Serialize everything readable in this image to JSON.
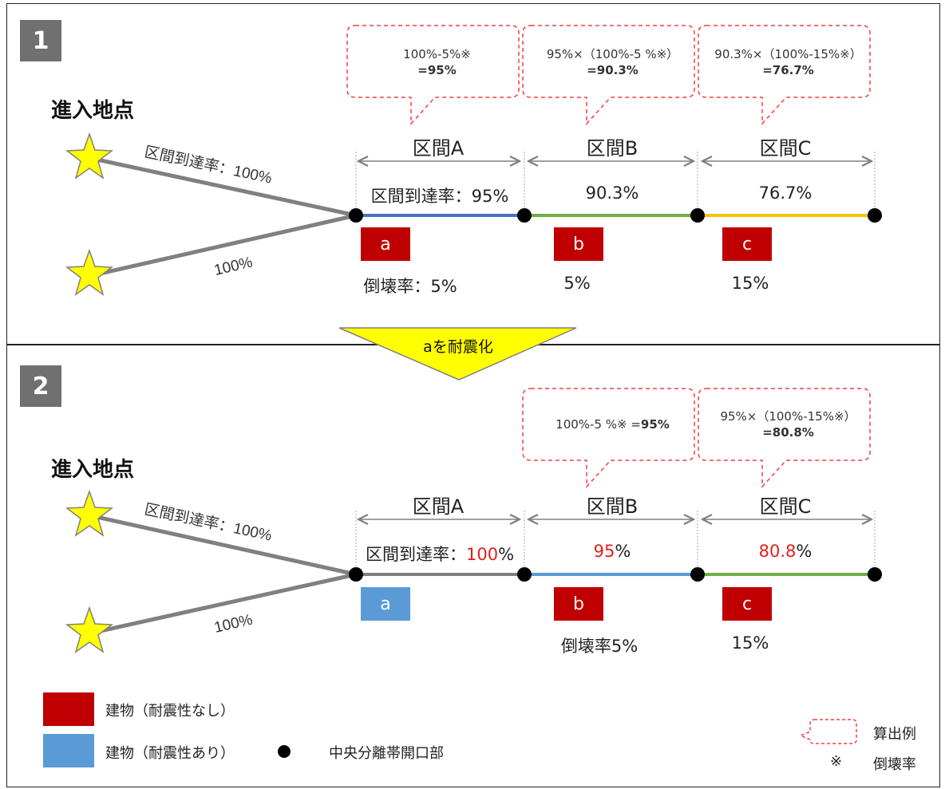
{
  "panels": [
    {
      "badge": "1",
      "entry_label": "進入地点",
      "route_labels": {
        "upper": "区間到達率：100%",
        "lower": "100%"
      },
      "sections": [
        {
          "name": "区間A",
          "rate_prefix": "区間到達率：",
          "rate_value": "95%",
          "building": "a",
          "seismic": false,
          "collapse": "倒壊率：5%"
        },
        {
          "name": "区間B",
          "rate_prefix": "",
          "rate_value": "90.3%",
          "building": "b",
          "seismic": false,
          "collapse": "5%"
        },
        {
          "name": "区間C",
          "rate_prefix": "",
          "rate_value": "76.7%",
          "building": "c",
          "seismic": false,
          "collapse": "15%"
        }
      ],
      "bubbles": [
        {
          "formula": "100%-5%※",
          "result": "=95%"
        },
        {
          "formula": "95%×（100%-5 %※）",
          "result": "=90.3%"
        },
        {
          "formula": "90.3%×（100%-15%※）",
          "result": "=76.7%"
        }
      ]
    },
    {
      "badge": "2",
      "entry_label": "進入地点",
      "route_labels": {
        "upper": "区間到達率：100%",
        "lower": "100%"
      },
      "sections": [
        {
          "name": "区間A",
          "rate_prefix": "区間到達率：",
          "rate_value": "100",
          "rate_suffix": "%",
          "building": "a",
          "seismic": true,
          "collapse": ""
        },
        {
          "name": "区間B",
          "rate_prefix": "",
          "rate_value": "95",
          "rate_suffix": "%",
          "building": "b",
          "seismic": false,
          "collapse": "倒壊率5%"
        },
        {
          "name": "区間C",
          "rate_prefix": "",
          "rate_value": "80.8",
          "rate_suffix": "%",
          "building": "c",
          "seismic": false,
          "collapse": "15%"
        }
      ],
      "bubbles": [
        {
          "formula": "100%-5 %※ =",
          "result": "95%"
        },
        {
          "formula": "95%×（100%-15%※）",
          "result": "=80.8%"
        }
      ]
    }
  ],
  "transition_label": "aを耐震化",
  "legend": {
    "unseismic": "建物（耐震性なし）",
    "seismic": "建物（耐震性あり）",
    "median_opening": "中央分離帯開口部",
    "example": "算出例",
    "collapse_mark": "※",
    "collapse_rate": "倒壊率"
  },
  "colors": {
    "route_gray": "#808080",
    "seg_blue": "#4472c4",
    "seg_green": "#70ad47",
    "seg_orange": "#ffc000",
    "seg_lightblue": "#5b9bd5",
    "building_red": "#c00000",
    "building_blue": "#5b9bd5",
    "highlight_red": "#e02020",
    "bubble_dash": "#f04040",
    "star_fill": "#ffff00",
    "arrow_yellow": "#ffff00"
  }
}
